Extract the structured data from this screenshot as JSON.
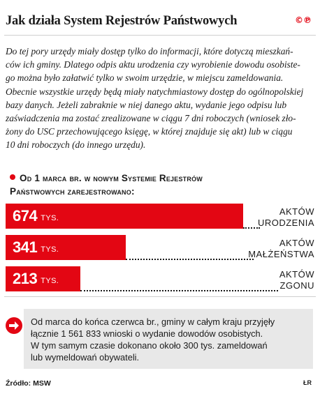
{
  "title": "Jak działa System Rejestrów Państwowych",
  "logo": "©℗",
  "intro_lines": [
    "Do tej pory urzędy miały dostęp tylko do informacji, które dotyczą mieszkań-",
    "ców ich gminy. Dlatego odpis aktu urodzenia czy wyrobienie dowodu osobiste-",
    "go można było załatwić tylko w swoim urzędzie, w miejscu zameldowania.",
    "Obecnie wszystkie urzędy będą miały natychmiastowy dostęp do ogólnopolskiej",
    "bazy danych. Jeżeli zabraknie w niej danego aktu, wydanie jego odpisu lub",
    "zaświadczenia ma zostać zrealizowane w ciągu 7 dni roboczych (wniosek zło-",
    "żony do USC przechowującego księgę, w której znajduje się akt) lub w ciągu",
    "10 dni roboczych (do innego urzędu)."
  ],
  "subheading": {
    "line1": "Od 1 marca br. w nowym Systemie Rejestrów",
    "line2": "Państwowych zarejestrowano:"
  },
  "chart_data": {
    "type": "bar",
    "orientation": "horizontal",
    "unit": "TYS.",
    "categories": [
      "AKTÓW URODZENIA",
      "AKTÓW MAŁŻEŃSTWA",
      "AKTÓW ZGONU"
    ],
    "values": [
      674,
      341,
      213
    ],
    "bars": [
      {
        "value": "674",
        "unit": "TYS.",
        "label_lines": [
          "AKTÓW",
          "URODZENIA"
        ]
      },
      {
        "value": "341",
        "unit": "TYS.",
        "label_lines": [
          "AKTÓW",
          "MAŁŻEŃSTWA"
        ]
      },
      {
        "value": "213",
        "unit": "TYS.",
        "label_lines": [
          "AKTÓW",
          "ZGONU"
        ]
      }
    ],
    "colors": {
      "bar": "#e30613",
      "bar_text": "#ffffff"
    }
  },
  "info_box": {
    "lines": [
      "Od marca do końca czerwca br., gminy w całym kraju przyjęły",
      "łącznie 1 561 833 wnioski o wydanie dowodów osobistych.",
      "W tym samym czasie dokonano około 300 tys. zameldowań",
      "lub wymeldowań obywateli."
    ],
    "icon": "arrow-right-icon"
  },
  "source": "Źródło: MSW",
  "credit": "ŁR"
}
